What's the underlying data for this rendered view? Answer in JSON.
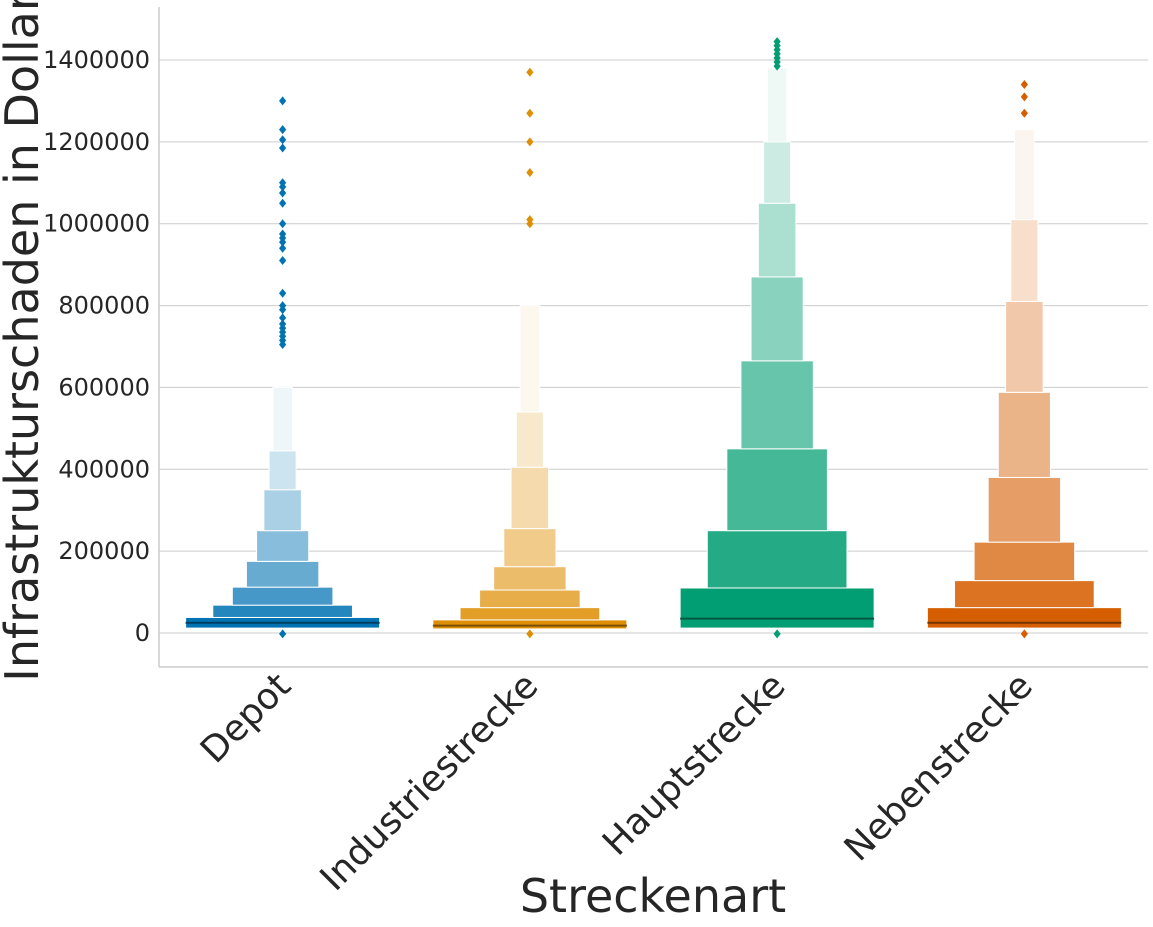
{
  "chart_data": {
    "type": "boxen",
    "xlabel": "Streckenart",
    "ylabel": "Infrastrukturschaden in Dollar",
    "ylim": [
      -80000,
      1530000
    ],
    "yticks": [
      0,
      200000,
      400000,
      600000,
      800000,
      1000000,
      1200000,
      1400000
    ],
    "ytick_labels": [
      "0",
      "200000",
      "400000",
      "600000",
      "800000",
      "1000000",
      "1200000",
      "1400000"
    ],
    "grid": "horizontal",
    "categories": [
      "Depot",
      "Industriestrecke",
      "Hauptstrecke",
      "Nebenstrecke"
    ],
    "series": [
      {
        "category": "Depot",
        "color": "#0173b2",
        "median": 25000,
        "boxes": [
          {
            "low": 12000,
            "high": 38000
          },
          {
            "low": 38000,
            "high": 68000
          },
          {
            "low": 68000,
            "high": 112000
          },
          {
            "low": 112000,
            "high": 175000
          },
          {
            "low": 175000,
            "high": 250000
          },
          {
            "low": 250000,
            "high": 350000
          },
          {
            "low": 350000,
            "high": 445000
          },
          {
            "low": 445000,
            "high": 600000
          }
        ],
        "outliers": [
          -2000,
          705000,
          715000,
          725000,
          735000,
          745000,
          755000,
          770000,
          790000,
          800000,
          830000,
          910000,
          940000,
          955000,
          965000,
          975000,
          1000000,
          1050000,
          1075000,
          1090000,
          1100000,
          1185000,
          1205000,
          1230000,
          1300000
        ]
      },
      {
        "category": "Industriestrecke",
        "color": "#de8f05",
        "median": 18000,
        "boxes": [
          {
            "low": 10000,
            "high": 32000
          },
          {
            "low": 32000,
            "high": 62000
          },
          {
            "low": 62000,
            "high": 105000
          },
          {
            "low": 105000,
            "high": 162000
          },
          {
            "low": 162000,
            "high": 255000
          },
          {
            "low": 255000,
            "high": 405000
          },
          {
            "low": 405000,
            "high": 540000
          },
          {
            "low": 540000,
            "high": 800000
          }
        ],
        "outliers": [
          -2000,
          1000000,
          1010000,
          1125000,
          1200000,
          1270000,
          1370000
        ]
      },
      {
        "category": "Hauptstrecke",
        "color": "#029e73",
        "median": 35000,
        "boxes": [
          {
            "low": 12000,
            "high": 110000
          },
          {
            "low": 110000,
            "high": 250000
          },
          {
            "low": 250000,
            "high": 450000
          },
          {
            "low": 450000,
            "high": 665000
          },
          {
            "low": 665000,
            "high": 870000
          },
          {
            "low": 870000,
            "high": 1050000
          },
          {
            "low": 1050000,
            "high": 1200000
          },
          {
            "low": 1200000,
            "high": 1380000
          }
        ],
        "outliers": [
          -2000,
          1385000,
          1395000,
          1405000,
          1415000,
          1425000,
          1435000,
          1445000
        ]
      },
      {
        "category": "Nebenstrecke",
        "color": "#d55e00",
        "median": 25000,
        "boxes": [
          {
            "low": 12000,
            "high": 62000
          },
          {
            "low": 62000,
            "high": 128000
          },
          {
            "low": 128000,
            "high": 222000
          },
          {
            "low": 222000,
            "high": 380000
          },
          {
            "low": 380000,
            "high": 588000
          },
          {
            "low": 588000,
            "high": 810000
          },
          {
            "low": 810000,
            "high": 1010000
          },
          {
            "low": 1010000,
            "high": 1230000
          }
        ],
        "outliers": [
          -2000,
          1270000,
          1310000,
          1340000
        ]
      }
    ]
  }
}
